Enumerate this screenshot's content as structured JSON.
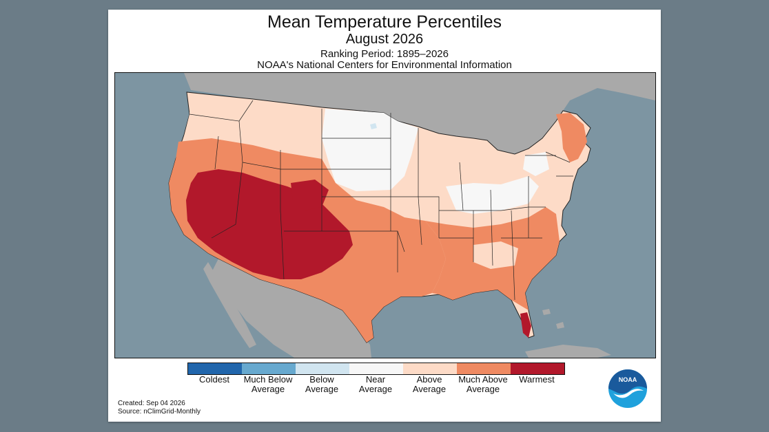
{
  "title": "Mean Temperature Percentiles",
  "subtitle": "August 2026",
  "ranking_period": "Ranking Period: 1895–2026",
  "organization": "NOAA's National Centers for Environmental Information",
  "legend": {
    "items": [
      {
        "label_line1": "Coldest",
        "label_line2": "",
        "color": "#2166ac"
      },
      {
        "label_line1": "Much Below",
        "label_line2": "Average",
        "color": "#67a9cf"
      },
      {
        "label_line1": "Below",
        "label_line2": "Average",
        "color": "#d1e5f0"
      },
      {
        "label_line1": "Near",
        "label_line2": "Average",
        "color": "#f7f7f7"
      },
      {
        "label_line1": "Above",
        "label_line2": "Average",
        "color": "#fddbc7"
      },
      {
        "label_line1": "Much Above",
        "label_line2": "Average",
        "color": "#ef8a62"
      },
      {
        "label_line1": "Warmest",
        "label_line2": "",
        "color": "#b2182b"
      }
    ]
  },
  "footer": {
    "created": "Created: Sep 04 2026",
    "source": "Source: nClimGrid-Monthly"
  },
  "logo": {
    "text": "NOAA",
    "colors": {
      "dark": "#1a5a9c",
      "light": "#1fa1dc"
    }
  },
  "map_colors": {
    "ocean": "#7d95a2",
    "land_outside": "#a9a9a9",
    "state_border": "#222222"
  }
}
